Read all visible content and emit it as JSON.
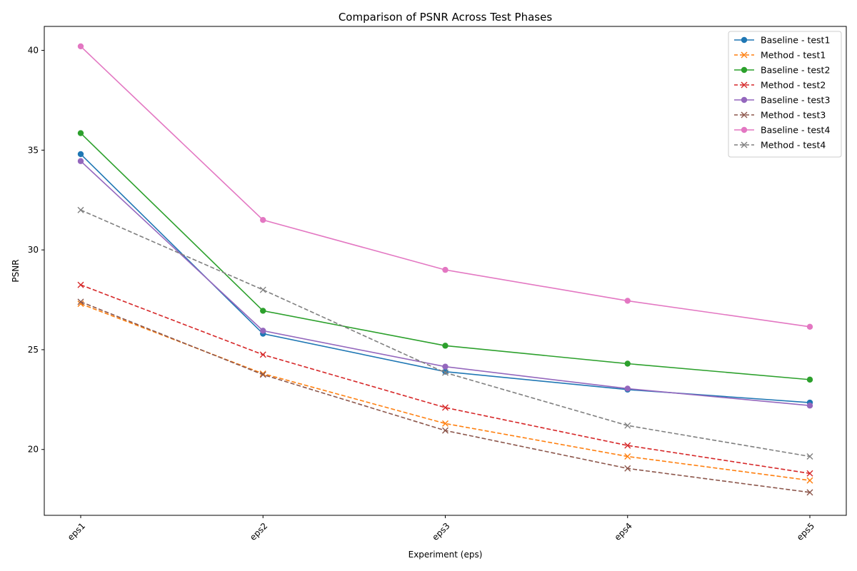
{
  "chart_data": {
    "type": "line",
    "title": "Comparison of PSNR Across Test Phases",
    "xlabel": "Experiment (eps)",
    "ylabel": "PSNR",
    "categories": [
      "eps1",
      "eps2",
      "eps3",
      "eps4",
      "eps5"
    ],
    "ylim": [
      16.7,
      41.2
    ],
    "yticks": [
      20,
      25,
      30,
      35,
      40
    ],
    "grid": false,
    "legend_position": "top-right",
    "series": [
      {
        "name": "Baseline - test1",
        "color": "#1f77b4",
        "dash": "solid",
        "marker": "circle",
        "values": [
          34.8,
          25.8,
          23.9,
          23.0,
          22.35
        ]
      },
      {
        "name": "Method - test1",
        "color": "#ff7f0e",
        "dash": "dashed",
        "marker": "x",
        "values": [
          27.3,
          23.8,
          21.3,
          19.65,
          18.45
        ]
      },
      {
        "name": "Baseline - test2",
        "color": "#2ca02c",
        "dash": "solid",
        "marker": "circle",
        "values": [
          35.85,
          26.95,
          25.2,
          24.3,
          23.5
        ]
      },
      {
        "name": "Method - test2",
        "color": "#d62728",
        "dash": "dashed",
        "marker": "x",
        "values": [
          28.25,
          24.75,
          22.1,
          20.2,
          18.8
        ]
      },
      {
        "name": "Baseline - test3",
        "color": "#9467bd",
        "dash": "solid",
        "marker": "circle",
        "values": [
          34.45,
          25.95,
          24.15,
          23.05,
          22.2
        ]
      },
      {
        "name": "Method - test3",
        "color": "#8c564b",
        "dash": "dashed",
        "marker": "x",
        "values": [
          27.4,
          23.75,
          20.95,
          19.05,
          17.85
        ]
      },
      {
        "name": "Baseline - test4",
        "color": "#e377c2",
        "dash": "solid",
        "marker": "circle",
        "values": [
          40.2,
          31.5,
          29.0,
          27.45,
          26.15
        ]
      },
      {
        "name": "Method - test4",
        "color": "#7f7f7f",
        "dash": "dashed",
        "marker": "x",
        "values": [
          32.0,
          28.0,
          23.85,
          21.2,
          19.65
        ]
      }
    ]
  }
}
